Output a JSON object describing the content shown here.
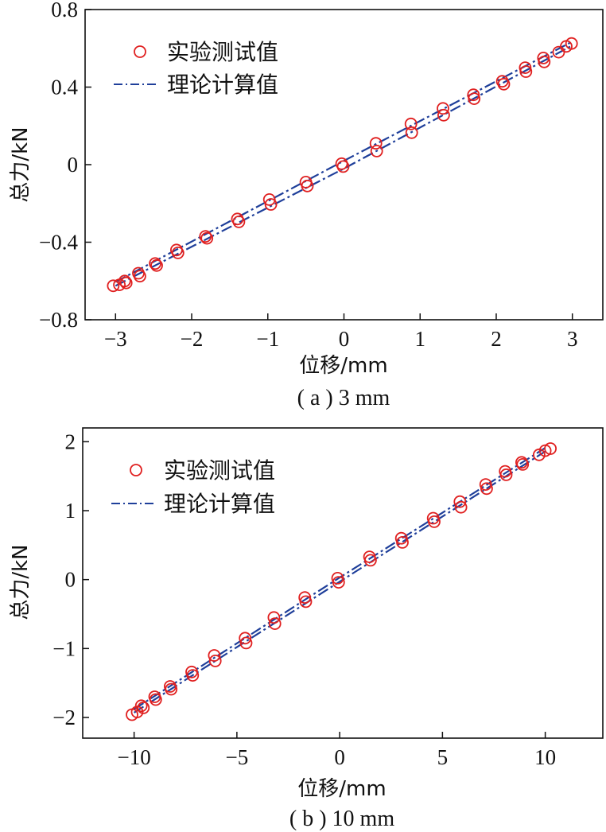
{
  "chart_data": [
    {
      "type": "scatter",
      "caption": "( a ) 3 mm",
      "xlabel": "位移/mm",
      "ylabel": "总力/kN",
      "xlim": [
        -3.4,
        3.4
      ],
      "ylim": [
        -0.8,
        0.8
      ],
      "xticks": [
        -3,
        -2,
        -1,
        0,
        1,
        2,
        3
      ],
      "xtick_labels": [
        "−3",
        "−2",
        "−1",
        "0",
        "1",
        "2",
        "3"
      ],
      "yticks": [
        -0.8,
        -0.4,
        0,
        0.4,
        0.8
      ],
      "ytick_labels": [
        "−0.8",
        "−0.4",
        "0",
        "0.4",
        "0.8"
      ],
      "legend_position": "top-left",
      "grid": false,
      "series": [
        {
          "name": "实验测试值",
          "marker": "open-circle",
          "color": "#e02020",
          "points": [
            [
              -3.03,
              -0.625
            ],
            [
              -2.95,
              -0.62
            ],
            [
              -2.88,
              -0.6
            ],
            [
              -2.86,
              -0.61
            ],
            [
              -2.7,
              -0.56
            ],
            [
              -2.68,
              -0.575
            ],
            [
              -2.48,
              -0.51
            ],
            [
              -2.46,
              -0.52
            ],
            [
              -2.2,
              -0.44
            ],
            [
              -2.18,
              -0.455
            ],
            [
              -1.82,
              -0.37
            ],
            [
              -1.8,
              -0.38
            ],
            [
              -1.4,
              -0.28
            ],
            [
              -1.38,
              -0.295
            ],
            [
              -0.98,
              -0.18
            ],
            [
              -0.96,
              -0.205
            ],
            [
              -0.5,
              -0.09
            ],
            [
              -0.48,
              -0.11
            ],
            [
              -0.03,
              0.005
            ],
            [
              -0.01,
              -0.01
            ],
            [
              0.42,
              0.11
            ],
            [
              0.43,
              0.07
            ],
            [
              0.88,
              0.21
            ],
            [
              0.89,
              0.165
            ],
            [
              1.3,
              0.29
            ],
            [
              1.31,
              0.255
            ],
            [
              1.7,
              0.36
            ],
            [
              1.71,
              0.34
            ],
            [
              2.08,
              0.43
            ],
            [
              2.1,
              0.415
            ],
            [
              2.38,
              0.5
            ],
            [
              2.39,
              0.48
            ],
            [
              2.62,
              0.55
            ],
            [
              2.63,
              0.53
            ],
            [
              2.82,
              0.58
            ],
            [
              2.92,
              0.61
            ],
            [
              2.99,
              0.625
            ]
          ]
        },
        {
          "name": "理论计算值",
          "style": "dash-dot",
          "color": "#1f3f9a",
          "upper": [
            [
              -3.0,
              -0.605
            ],
            [
              0.0,
              0.02
            ],
            [
              3.0,
              0.635
            ]
          ],
          "lower": [
            [
              -3.0,
              -0.625
            ],
            [
              0.0,
              -0.02
            ],
            [
              3.0,
              0.615
            ]
          ]
        }
      ]
    },
    {
      "type": "scatter",
      "caption": "( b ) 10 mm",
      "xlabel": "位移/mm",
      "ylabel": "总力/kN",
      "xlim": [
        -12.5,
        12.8
      ],
      "ylim": [
        -2.3,
        2.2
      ],
      "xticks": [
        -10,
        -5,
        0,
        5,
        10
      ],
      "xtick_labels": [
        "−10",
        "−5",
        "0",
        "5",
        "10"
      ],
      "yticks": [
        -2,
        -1,
        0,
        1,
        2
      ],
      "ytick_labels": [
        "−2",
        "−1",
        "0",
        "1",
        "2"
      ],
      "legend_position": "top-left",
      "grid": false,
      "series": [
        {
          "name": "实验测试值",
          "marker": "open-circle",
          "color": "#e02020",
          "points": [
            [
              -10.1,
              -1.96
            ],
            [
              -9.85,
              -1.92
            ],
            [
              -9.65,
              -1.83
            ],
            [
              -9.55,
              -1.86
            ],
            [
              -9.0,
              -1.7
            ],
            [
              -8.95,
              -1.74
            ],
            [
              -8.25,
              -1.55
            ],
            [
              -8.2,
              -1.59
            ],
            [
              -7.2,
              -1.34
            ],
            [
              -7.15,
              -1.39
            ],
            [
              -6.1,
              -1.1
            ],
            [
              -6.05,
              -1.18
            ],
            [
              -4.6,
              -0.85
            ],
            [
              -4.55,
              -0.92
            ],
            [
              -3.2,
              -0.55
            ],
            [
              -3.15,
              -0.64
            ],
            [
              -1.7,
              -0.26
            ],
            [
              -1.65,
              -0.32
            ],
            [
              -0.1,
              0.02
            ],
            [
              -0.05,
              -0.04
            ],
            [
              1.45,
              0.33
            ],
            [
              1.5,
              0.28
            ],
            [
              3.0,
              0.6
            ],
            [
              3.05,
              0.54
            ],
            [
              4.55,
              0.89
            ],
            [
              4.6,
              0.84
            ],
            [
              5.85,
              1.13
            ],
            [
              5.9,
              1.05
            ],
            [
              7.1,
              1.38
            ],
            [
              7.15,
              1.32
            ],
            [
              8.05,
              1.57
            ],
            [
              8.1,
              1.52
            ],
            [
              8.85,
              1.7
            ],
            [
              8.9,
              1.67
            ],
            [
              9.7,
              1.81
            ],
            [
              10.0,
              1.87
            ],
            [
              10.25,
              1.9
            ]
          ]
        },
        {
          "name": "理论计算值",
          "style": "dash-dot",
          "color": "#1f3f9a",
          "upper": [
            [
              -10.0,
              -1.88
            ],
            [
              0.0,
              0.03
            ],
            [
              10.0,
              1.91
            ]
          ],
          "lower": [
            [
              -10.0,
              -1.93
            ],
            [
              0.0,
              -0.03
            ],
            [
              10.0,
              1.86
            ]
          ]
        }
      ]
    }
  ]
}
